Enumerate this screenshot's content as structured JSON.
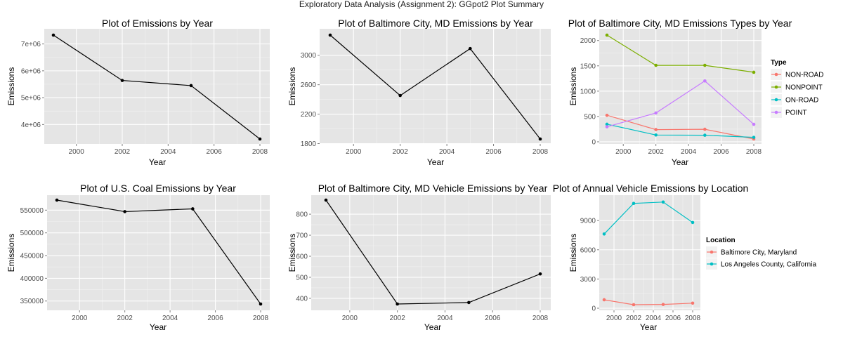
{
  "page_title": "Exploratory Data Analysis (Assignment 2): GGpot2 Plot Summary",
  "chart_data": [
    {
      "type": "line",
      "title": "Plot of Emissions by Year",
      "xlabel": "Year",
      "ylabel": "Emissions",
      "xlim": [
        1999,
        2008
      ],
      "ylim": [
        3460000,
        7330000
      ],
      "grid": true,
      "xticks": [
        2000,
        2002,
        2004,
        2006,
        2008
      ],
      "xtick_labels": [
        "2000",
        "2002",
        "2004",
        "2006",
        "2008"
      ],
      "yticks": [
        4000000,
        5000000,
        6000000,
        7000000
      ],
      "ytick_labels": [
        "4e+06",
        "5e+06",
        "6e+06",
        "7e+06"
      ],
      "series": [
        {
          "color": "#000000",
          "x": [
            1999,
            2002,
            2005,
            2008
          ],
          "y": [
            7330000,
            5640000,
            5450000,
            3460000
          ]
        }
      ]
    },
    {
      "type": "line",
      "title": "Plot of Baltimore City, MD Emissions by Year",
      "xlabel": "Year",
      "ylabel": "Emissions",
      "xlim": [
        1999,
        2008
      ],
      "ylim": [
        1862,
        3274
      ],
      "grid": true,
      "xticks": [
        2000,
        2002,
        2004,
        2006,
        2008
      ],
      "xtick_labels": [
        "2000",
        "2002",
        "2004",
        "2006",
        "2008"
      ],
      "yticks": [
        1800,
        2200,
        2600,
        3000
      ],
      "ytick_labels": [
        "1800",
        "2200",
        "2600",
        "3000"
      ],
      "series": [
        {
          "color": "#000000",
          "x": [
            1999,
            2002,
            2005,
            2008
          ],
          "y": [
            3274,
            2453,
            3091,
            1862
          ]
        }
      ]
    },
    {
      "type": "line",
      "title": "Plot of Baltimore City, MD Emissions Types by Year",
      "xlabel": "Year",
      "ylabel": "Emissions",
      "xlim": [
        1999,
        2008
      ],
      "ylim": [
        55,
        2107
      ],
      "grid": true,
      "xticks": [
        2000,
        2002,
        2004,
        2006,
        2008
      ],
      "xtick_labels": [
        "2000",
        "2002",
        "2004",
        "2006",
        "2008"
      ],
      "yticks": [
        0,
        500,
        1000,
        1500,
        2000
      ],
      "ytick_labels": [
        "0",
        "500",
        "1000",
        "1500",
        "2000"
      ],
      "legend": {
        "title": "Type",
        "placement": "right"
      },
      "series": [
        {
          "name": "NON-ROAD",
          "color": "#F8766D",
          "x": [
            1999,
            2002,
            2005,
            2008
          ],
          "y": [
            523,
            241,
            248,
            55
          ]
        },
        {
          "name": "NONPOINT",
          "color": "#7CAE00",
          "x": [
            1999,
            2002,
            2005,
            2008
          ],
          "y": [
            2107,
            1510,
            1510,
            1373
          ]
        },
        {
          "name": "ON-ROAD",
          "color": "#00BFC4",
          "x": [
            1999,
            2002,
            2005,
            2008
          ],
          "y": [
            347,
            134,
            130,
            88
          ]
        },
        {
          "name": "POINT",
          "color": "#C77CFF",
          "x": [
            1999,
            2002,
            2005,
            2008
          ],
          "y": [
            296,
            569,
            1202,
            345
          ]
        }
      ]
    },
    {
      "type": "line",
      "title": "Plot of U.S. Coal Emissions by Year",
      "xlabel": "Year",
      "ylabel": "Emissions",
      "xlim": [
        1999,
        2008
      ],
      "ylim": [
        343432,
        572126
      ],
      "grid": true,
      "xticks": [
        2000,
        2002,
        2004,
        2006,
        2008
      ],
      "xtick_labels": [
        "2000",
        "2002",
        "2004",
        "2006",
        "2008"
      ],
      "yticks": [
        350000,
        400000,
        450000,
        500000,
        550000
      ],
      "ytick_labels": [
        "350000",
        "400000",
        "450000",
        "500000",
        "550000"
      ],
      "series": [
        {
          "color": "#000000",
          "x": [
            1999,
            2002,
            2005,
            2008
          ],
          "y": [
            572126,
            546789,
            552881,
            343432
          ]
        }
      ]
    },
    {
      "type": "line",
      "title": "Plot of Baltimore City, MD Vehicle Emissions by Year",
      "xlabel": "Year",
      "ylabel": "Emissions",
      "xlim": [
        1999,
        2008
      ],
      "ylim": [
        373,
        867
      ],
      "grid": true,
      "xticks": [
        2000,
        2002,
        2004,
        2006,
        2008
      ],
      "xtick_labels": [
        "2000",
        "2002",
        "2004",
        "2006",
        "2008"
      ],
      "yticks": [
        400,
        500,
        600,
        700,
        800
      ],
      "ytick_labels": [
        "400",
        "500",
        "600",
        "700",
        "800"
      ],
      "series": [
        {
          "color": "#000000",
          "x": [
            1999,
            2002,
            2005,
            2008
          ],
          "y": [
            867,
            373,
            380,
            516
          ]
        }
      ]
    },
    {
      "type": "line",
      "title": "Plot of Annual Vehicle Emissions by Location",
      "xlabel": "Year",
      "ylabel": "Emissions",
      "xlim": [
        1999,
        2008
      ],
      "ylim": [
        0,
        11100
      ],
      "grid": true,
      "xticks": [
        2000,
        2002,
        2004,
        2006,
        2008
      ],
      "xtick_labels": [
        "2000",
        "2002",
        "2004",
        "2006",
        "2008"
      ],
      "yticks": [
        0,
        3000,
        6000,
        9000
      ],
      "ytick_labels": [
        "0",
        "3000",
        "6000",
        "9000"
      ],
      "legend": {
        "title": "Location",
        "placement": "right"
      },
      "series": [
        {
          "name": "Baltimore City, Maryland",
          "color": "#F8766D",
          "x": [
            1999,
            2002,
            2005,
            2008
          ],
          "y": [
            866,
            362,
            388,
            519
          ]
        },
        {
          "name": "Los Angeles County, California",
          "color": "#00BFC4",
          "x": [
            1999,
            2002,
            2005,
            2008
          ],
          "y": [
            7620,
            10760,
            10900,
            8800
          ]
        }
      ]
    }
  ]
}
